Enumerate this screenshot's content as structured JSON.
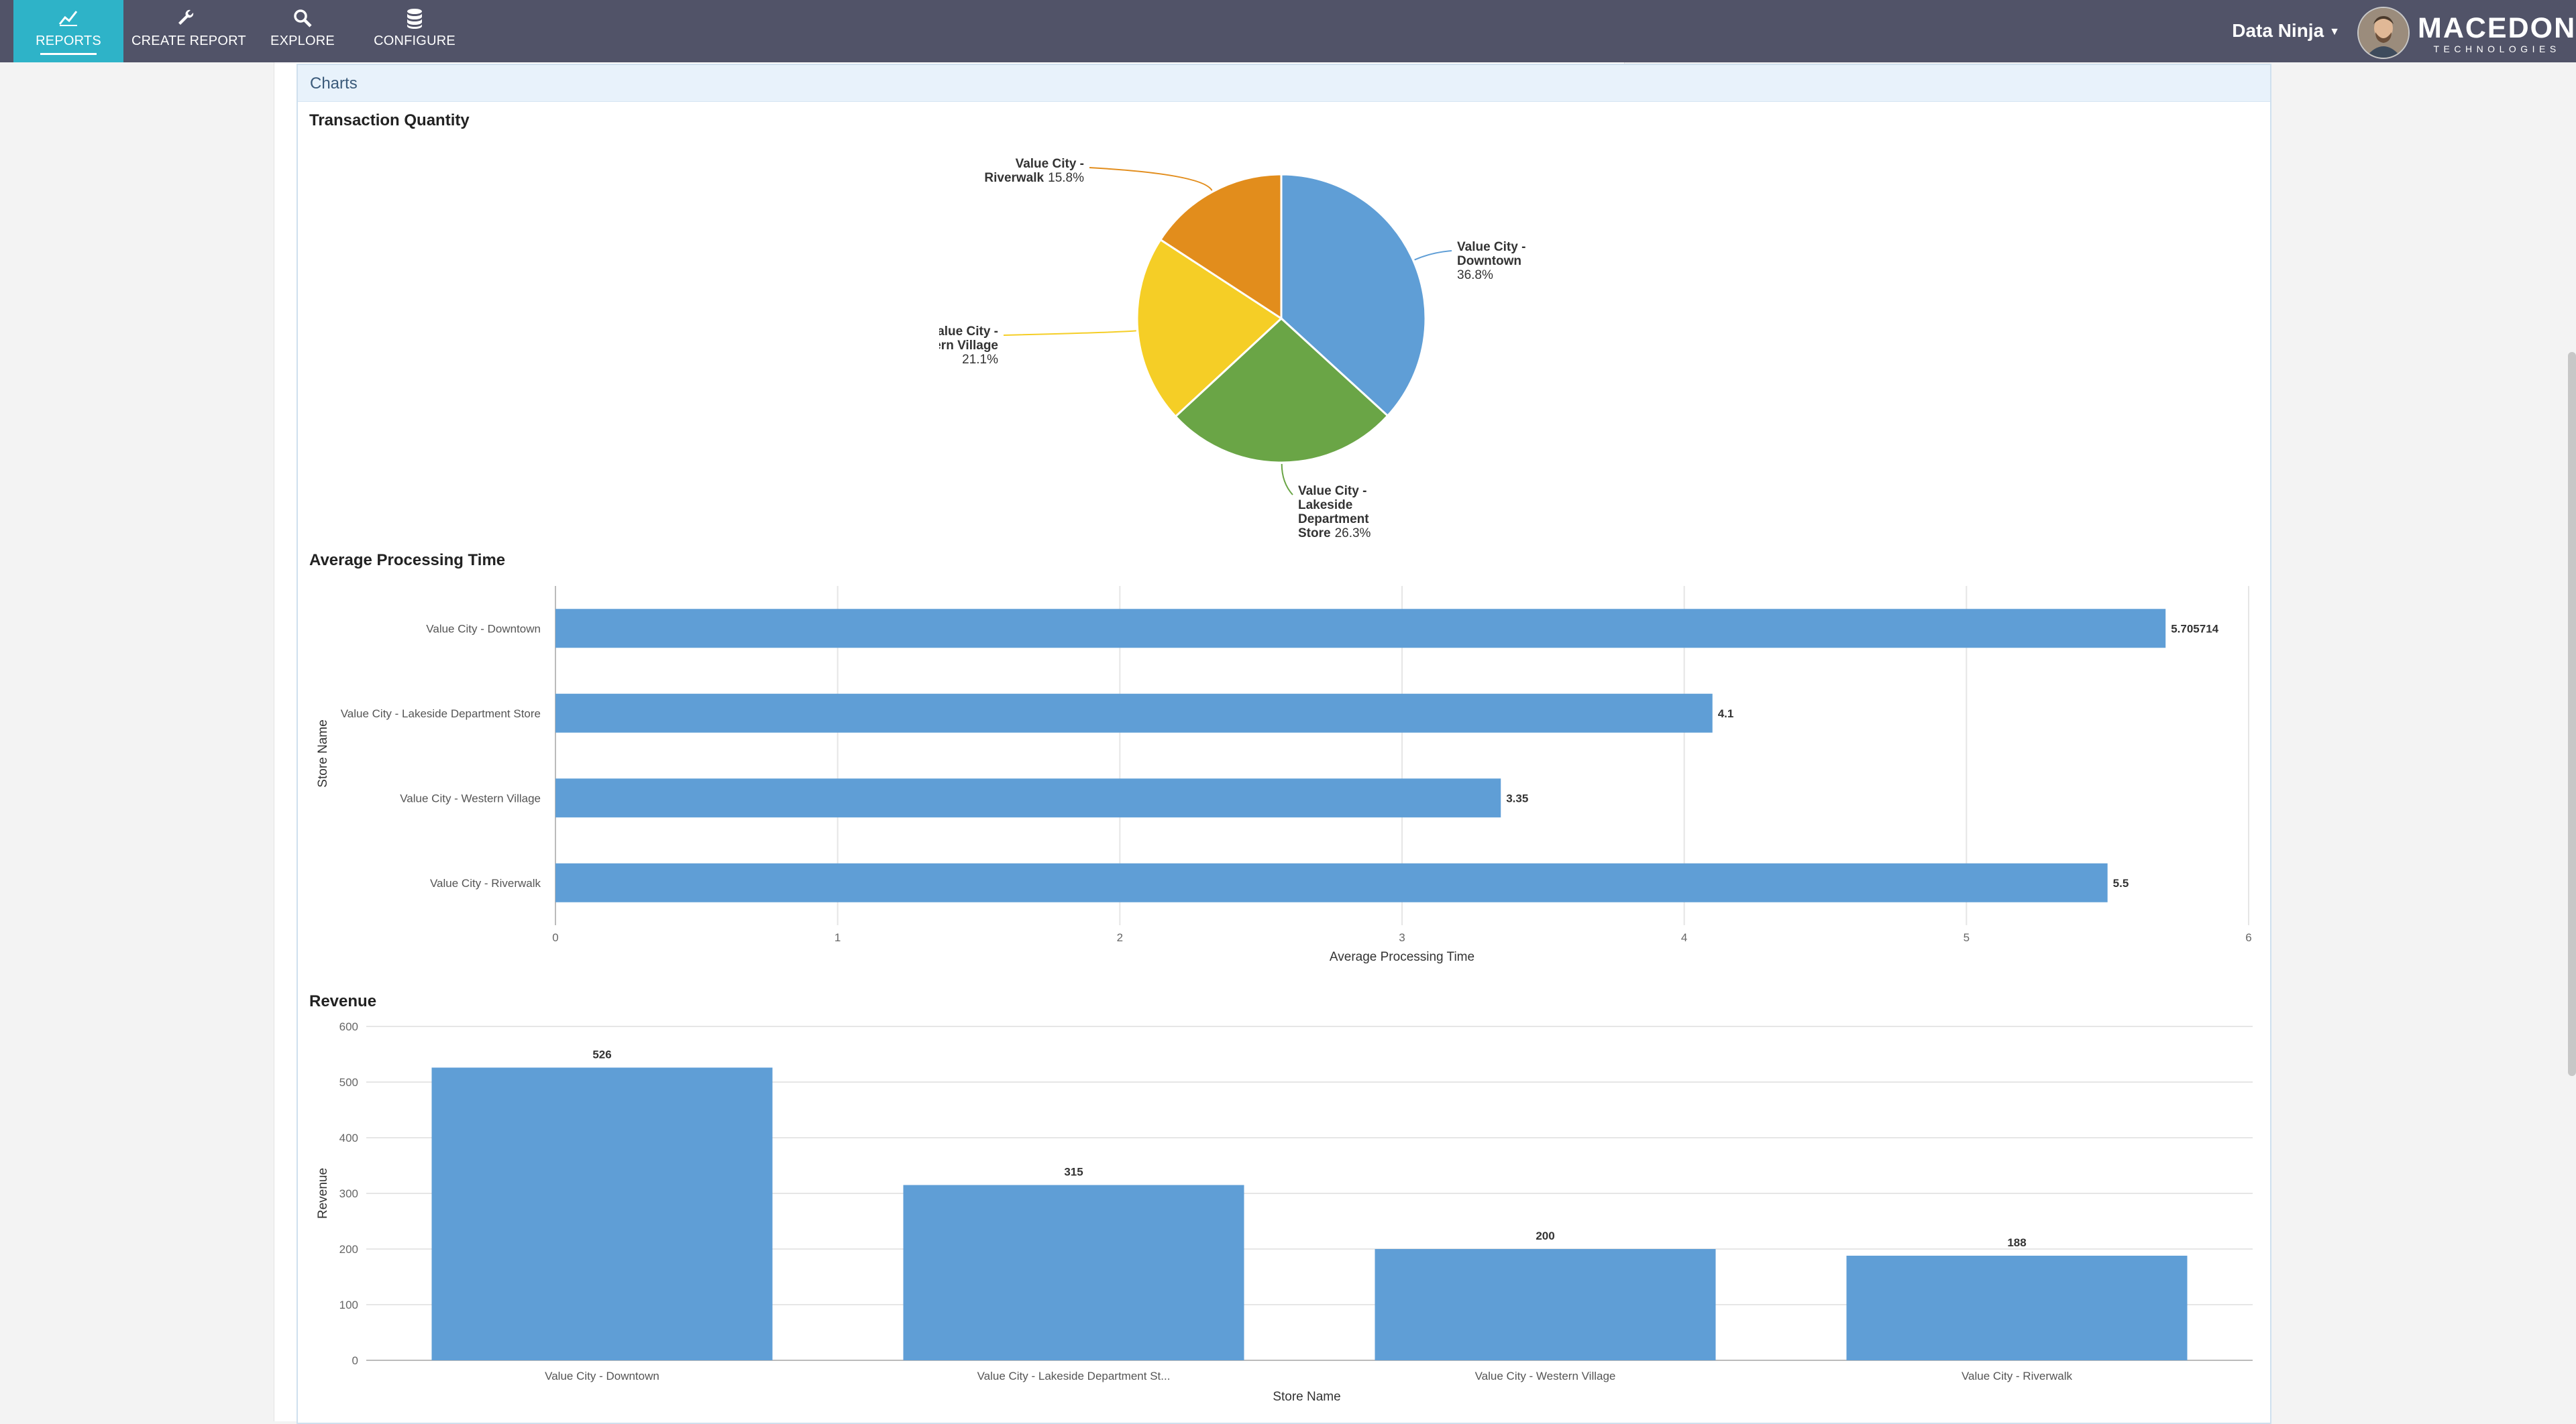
{
  "nav": {
    "items": [
      {
        "label": "REPORTS",
        "icon": "line-chart-icon",
        "active": true
      },
      {
        "label": "CREATE REPORT",
        "icon": "wrench-icon",
        "active": false
      },
      {
        "label": "EXPLORE",
        "icon": "search-icon",
        "active": false
      },
      {
        "label": "CONFIGURE",
        "icon": "database-icon",
        "active": false
      }
    ],
    "user_name": "Data Ninja",
    "brand_name": "MACEDON",
    "brand_sub": "TECHNOLOGIES"
  },
  "panel": {
    "header": "Charts"
  },
  "colors": {
    "nav_bg": "#515368",
    "nav_active": "#2eb3c8",
    "bar": "#5f9ed6",
    "pie": [
      "#5f9ed6",
      "#6aa546",
      "#f5ce26",
      "#e28d1c"
    ]
  },
  "chart_data": [
    {
      "type": "pie",
      "title": "Transaction Quantity",
      "slices": [
        {
          "label_lines": [
            "Value City -",
            "Downtown"
          ],
          "pct_label": "36.8%",
          "value": 36.8
        },
        {
          "label_lines": [
            "Value City -",
            "Lakeside",
            "Department",
            "Store"
          ],
          "pct_label": "26.3%",
          "value": 26.3
        },
        {
          "label_lines": [
            "Value City -",
            "Western Village"
          ],
          "pct_label": "21.1%",
          "value": 21.1
        },
        {
          "label_lines": [
            "Value City -",
            "Riverwalk"
          ],
          "pct_label": "15.8%",
          "value": 15.8
        }
      ]
    },
    {
      "type": "bar",
      "orientation": "horizontal",
      "title": "Average Processing Time",
      "categories": [
        "Value City - Downtown",
        "Value City - Lakeside Department Store",
        "Value City - Western Village",
        "Value City - Riverwalk"
      ],
      "values": [
        5.705714,
        4.1,
        3.35,
        5.5
      ],
      "value_labels": [
        "5.705714",
        "4.1",
        "3.35",
        "5.5"
      ],
      "xlabel": "Average Processing Time",
      "ylabel": "Store Name",
      "xlim": [
        0,
        6
      ],
      "ticks": [
        "0",
        "1",
        "2",
        "3",
        "4",
        "5",
        "6"
      ],
      "grid": true
    },
    {
      "type": "bar",
      "orientation": "vertical",
      "title": "Revenue",
      "categories": [
        "Value City - Downtown",
        "Value City - Lakeside Department St...",
        "Value City - Western Village",
        "Value City - Riverwalk"
      ],
      "values": [
        526,
        315,
        200,
        188
      ],
      "value_labels": [
        "526",
        "315",
        "200",
        "188"
      ],
      "xlabel": "Store Name",
      "ylabel": "Revenue",
      "ylim": [
        0,
        600
      ],
      "ticks": [
        "0",
        "100",
        "200",
        "300",
        "400",
        "500",
        "600"
      ],
      "grid": true
    }
  ]
}
